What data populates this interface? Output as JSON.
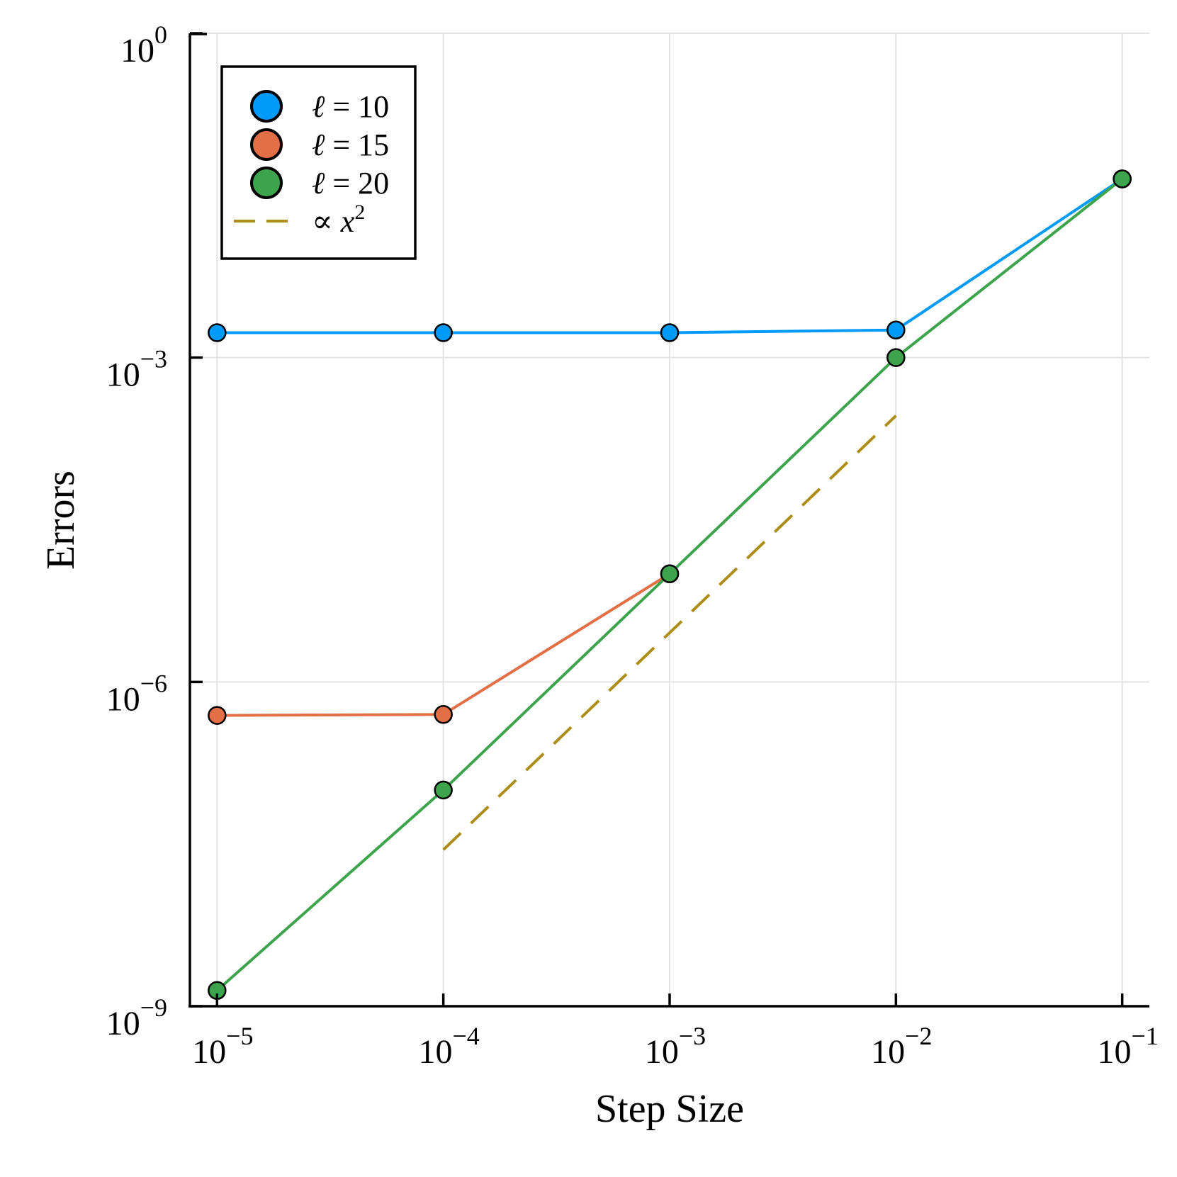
{
  "chart_data": {
    "type": "line",
    "scale": {
      "x": "log",
      "y": "log"
    },
    "xlabel": "Step Size",
    "ylabel": "Errors",
    "x_ticks": [
      {
        "exp": -5,
        "base": "10",
        "sup": "−5"
      },
      {
        "exp": -4,
        "base": "10",
        "sup": "−4"
      },
      {
        "exp": -3,
        "base": "10",
        "sup": "−3"
      },
      {
        "exp": -2,
        "base": "10",
        "sup": "−2"
      },
      {
        "exp": -1,
        "base": "10",
        "sup": "−1"
      }
    ],
    "y_ticks": [
      {
        "exp": -9,
        "base": "10",
        "sup": "−9"
      },
      {
        "exp": -6,
        "base": "10",
        "sup": "−6"
      },
      {
        "exp": -3,
        "base": "10",
        "sup": "−3"
      },
      {
        "exp": 0,
        "base": "10",
        "sup": "0"
      }
    ],
    "xlim_log10": [
      -5.12,
      -0.88
    ],
    "ylim_log10": [
      -9.0,
      0.0
    ],
    "grid": true,
    "legend_position": "top-left",
    "series": [
      {
        "name": "ℓ = 10",
        "legend_prefix": "ℓ",
        "legend_rest": " = 10",
        "color": "#009af9",
        "marker": "circle",
        "x": [
          1e-05,
          0.0001,
          0.001,
          0.01,
          0.1
        ],
        "y": [
          0.0017,
          0.0017,
          0.0017,
          0.0018,
          0.045
        ]
      },
      {
        "name": "ℓ = 15",
        "legend_prefix": "ℓ",
        "legend_rest": " = 15",
        "color": "#e26f46",
        "marker": "circle",
        "x": [
          1e-05,
          0.0001,
          0.001
        ],
        "y": [
          4.9e-07,
          5e-07,
          1e-05
        ]
      },
      {
        "name": "ℓ = 20",
        "legend_prefix": "ℓ",
        "legend_rest": " = 20",
        "color": "#3da44d",
        "marker": "circle",
        "x": [
          1e-05,
          0.0001,
          0.001,
          0.01,
          0.1
        ],
        "y": [
          1.4e-09,
          1e-07,
          1e-05,
          0.001,
          0.045
        ]
      },
      {
        "name": "∝ x²",
        "legend_prefix": "∝ x",
        "legend_rest": "2",
        "color": "#ac8d18",
        "marker": "none",
        "dashed": true,
        "x": [
          0.0001,
          0.01
        ],
        "y": [
          2.8e-08,
          0.00029
        ]
      }
    ]
  }
}
